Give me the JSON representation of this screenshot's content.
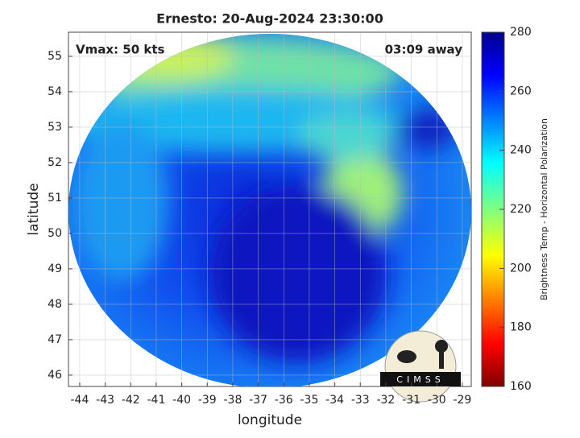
{
  "chart_data": {
    "type": "map",
    "title": "Ernesto: 20-Aug-2024 23:30:00",
    "xlabel": "longitude",
    "ylabel": "latitude",
    "xlim": [
      -44.44,
      -28.65
    ],
    "xticks": [
      -44,
      -43,
      -42,
      -41,
      -40,
      -39,
      -38,
      -37,
      -36,
      -35,
      -34,
      -33,
      -32,
      -31,
      -30,
      -29
    ],
    "ylim": [
      45.68,
      55.68
    ],
    "yticks": [
      46,
      47,
      48,
      49,
      50,
      51,
      52,
      53,
      54,
      55
    ],
    "grid": true,
    "colorbar_label": "Brightness Temp - Horizontal Polarization",
    "clim": [
      160,
      280
    ],
    "cticks": [
      160,
      180,
      200,
      220,
      240,
      260,
      280
    ],
    "annotations": [
      "Vmax: 50 kts",
      "03:09 away"
    ],
    "logo": "CIMSS"
  }
}
